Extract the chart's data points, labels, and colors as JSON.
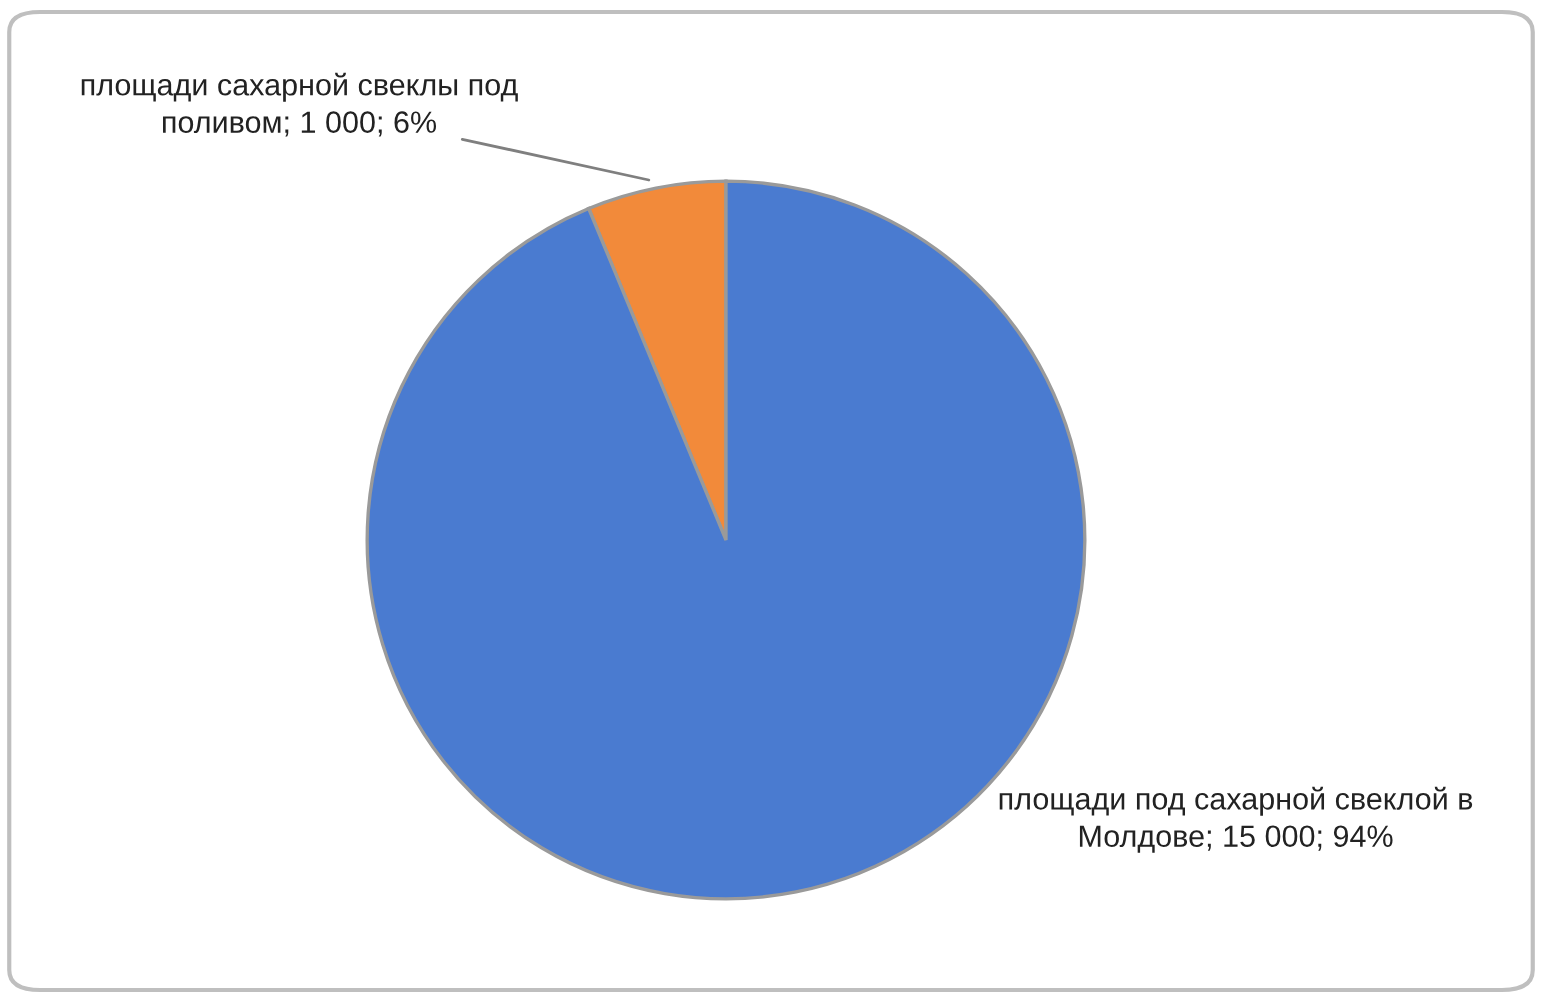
{
  "chart_data": {
    "type": "pie",
    "categories": [
      "площади сахарной свеклы под поливом",
      "площади под сахарной свеклой в Молдове"
    ],
    "values": [
      1000,
      15000
    ],
    "colors": [
      "#f28a3a",
      "#4a7bd0"
    ],
    "value_labels": [
      "1 000; 6%",
      "15 000; 94%"
    ],
    "legend": false
  }
}
